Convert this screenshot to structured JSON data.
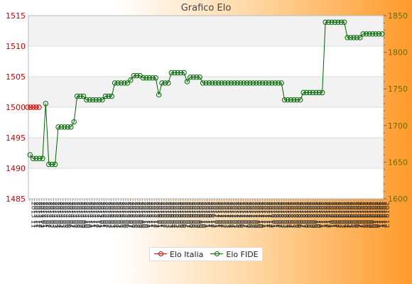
{
  "chart_data": {
    "type": "line",
    "title": "Grafico Elo",
    "y_left": {
      "min": 1485,
      "max": 1515,
      "ticks": [
        1485,
        1490,
        1495,
        1500,
        1505,
        1510,
        1515
      ],
      "color": "#cc0000"
    },
    "y_right": {
      "min": 1600,
      "max": 1850,
      "ticks": [
        1600,
        1650,
        1700,
        1750,
        1800,
        1850
      ],
      "color": "#6b6b00"
    },
    "x_tick_labels": [
      "2013 11",
      "2013 11",
      "2013 12",
      "2013 12",
      "2014 01",
      "2014 01",
      "2014 02",
      "2014 02",
      "2014 03",
      "2014 03",
      "2014 04",
      "2014 04",
      "2014 05",
      "2014 05",
      "2014 06",
      "2014 06",
      "2014 07",
      "2014 07",
      "2014 08",
      "2014 08",
      "2014 09",
      "2014 09",
      "2014 10",
      "2014 10",
      "2014 11",
      "2014 11",
      "2014 12",
      "2014 12",
      "2015 01",
      "2015 01",
      "2015 02",
      "2015 02",
      "2015 03",
      "2015 03",
      "2015 04",
      "2015 04",
      "2015 05",
      "2015 05",
      "2015 06",
      "2015 06",
      "2015 07",
      "2015 07",
      "2015 08",
      "2015 08",
      "2015 09",
      "2015 09",
      "2015 10",
      "2015 10",
      "2015 11",
      "2015 11",
      "2015 12",
      "2015 12",
      "2016 01",
      "2016 01",
      "2016 02",
      "2016 02",
      "2016 03",
      "2016 03",
      "2016 04",
      "2016 04",
      "2016 05",
      "2016 05",
      "2016 06",
      "2016 06",
      "2016 07",
      "2016 07",
      "2016 08",
      "2016 08",
      "2016 09",
      "2016 09",
      "2016 10",
      "2016 10",
      "2016 11",
      "2016 11",
      "2016 12",
      "2016 12",
      "2017 01",
      "2017 01",
      "2017 02",
      "2017 02",
      "2017 03",
      "2017 03",
      "2017 04",
      "2017 04",
      "2017 05",
      "2017 05",
      "2017 06",
      "2017 06",
      "2017 07",
      "2017 07",
      "2017 08",
      "2017 08",
      "2017 09",
      "2017 09",
      "2017 10",
      "2017 10",
      "2017 11",
      "2017 11",
      "2017 12",
      "2017 12",
      "2018 01",
      "2018 01",
      "2018 02",
      "2018 02",
      "2018 03",
      "2018 03",
      "2018 04",
      "2018 04",
      "2018 05",
      "2018 05",
      "2018 06",
      "2018 06",
      "2018 07",
      "2018 07",
      "2018 08",
      "2018 08",
      "2018 09",
      "2018 09",
      "2018 10",
      "2018 10",
      "2018 11",
      "2018 11",
      "2018 12",
      "2018 12",
      "2019 01",
      "2019 01",
      "2019 02",
      "2019 02",
      "2019 03",
      "2019 03",
      "2019 04",
      "2019 04",
      "2019 05",
      "2019 05",
      "2019 06",
      "2019 06",
      "2019 07",
      "2019 07",
      "2019 08",
      "2019 08",
      "2019 09",
      "2019 09",
      "2019 10",
      "2019 10",
      "2019 11",
      "2019 11",
      "2019 12",
      "2019 12"
    ],
    "series": [
      {
        "name": "Elo Italia",
        "axis": "left",
        "color": "#cc0000",
        "values": [
          1500,
          1500,
          1500,
          1500,
          1500
        ]
      },
      {
        "name": "Elo FIDE",
        "axis": "right",
        "color": "#006600",
        "values": [
          1660,
          1655,
          1655,
          1655,
          1655,
          1730,
          1647,
          1647,
          1647,
          1698,
          1698,
          1698,
          1698,
          1698,
          1705,
          1740,
          1740,
          1740,
          1735,
          1735,
          1735,
          1735,
          1735,
          1735,
          1740,
          1740,
          1740,
          1758,
          1758,
          1758,
          1758,
          1758,
          1762,
          1768,
          1768,
          1768,
          1765,
          1765,
          1765,
          1765,
          1765,
          1742,
          1758,
          1758,
          1758,
          1772,
          1772,
          1772,
          1772,
          1772,
          1760,
          1766,
          1766,
          1766,
          1766,
          1758,
          1758,
          1758,
          1758,
          1758,
          1758,
          1758,
          1758,
          1758,
          1758,
          1758,
          1758,
          1758,
          1758,
          1758,
          1758,
          1758,
          1758,
          1758,
          1758,
          1758,
          1758,
          1758,
          1758,
          1758,
          1758,
          1735,
          1735,
          1735,
          1735,
          1735,
          1735,
          1745,
          1745,
          1745,
          1745,
          1745,
          1745,
          1745,
          1841,
          1841,
          1841,
          1841,
          1841,
          1841,
          1841,
          1820,
          1820,
          1820,
          1820,
          1820,
          1825,
          1825,
          1825,
          1825,
          1825,
          1825,
          1825
        ]
      }
    ],
    "grid": true,
    "legend_position": "bottom"
  },
  "legend": {
    "items": [
      {
        "label": "Elo Italia",
        "color": "#cc0000"
      },
      {
        "label": "Elo FIDE",
        "color": "#006600"
      }
    ]
  }
}
